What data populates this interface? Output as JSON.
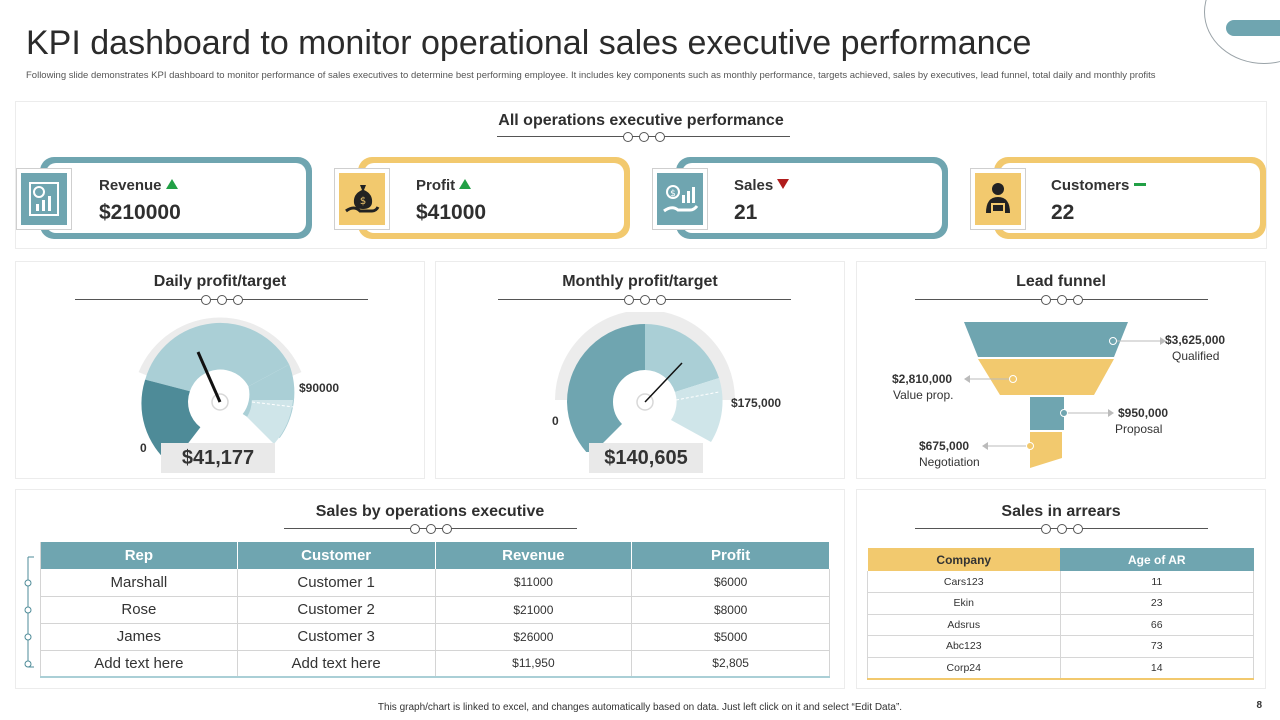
{
  "header": {
    "title": "KPI dashboard to monitor operational sales executive performance",
    "subtitle": "Following slide demonstrates KPI dashboard to monitor performance of sales executives to determine best performing employee. It includes key components such as monthly performance, targets achieved, sales by executives, lead funnel, total daily and monthly profits"
  },
  "overview": {
    "title": "All operations executive performance",
    "kpis": [
      {
        "label": "Revenue",
        "value": "$210000",
        "trend": "up",
        "icon": "revenue-chart-icon"
      },
      {
        "label": "Profit",
        "value": "$41000",
        "trend": "up",
        "icon": "money-bag-hand-icon"
      },
      {
        "label": "Sales",
        "value": "21",
        "trend": "down",
        "icon": "sales-hand-icon"
      },
      {
        "label": "Customers",
        "value": "22",
        "trend": "flat",
        "icon": "customer-person-icon"
      }
    ]
  },
  "daily": {
    "title": "Daily profit/target",
    "min_label": "0",
    "max_label": "$90000",
    "value_label": "$41,177",
    "value": 41177,
    "max": 90000
  },
  "monthly": {
    "title": "Monthly profit/target",
    "min_label": "0",
    "max_label": "$175,000",
    "value_label": "$140,605",
    "value": 140605,
    "max": 175000
  },
  "funnel": {
    "title": "Lead funnel",
    "stages": [
      {
        "value": "$3,625,000",
        "label": "Qualified"
      },
      {
        "value": "$2,810,000",
        "label": "Value prop."
      },
      {
        "value": "$950,000",
        "label": "Proposal"
      },
      {
        "value": "$675,000",
        "label": "Negotiation"
      }
    ]
  },
  "sales_exec": {
    "title": "Sales by operations executive",
    "headers": [
      "Rep",
      "Customer",
      "Revenue",
      "Profit"
    ],
    "rows": [
      [
        "Marshall",
        "Customer 1",
        "$11000",
        "$6000"
      ],
      [
        "Rose",
        "Customer 2",
        "$21000",
        "$8000"
      ],
      [
        "James",
        "Customer 3",
        "$26000",
        "$5000"
      ],
      [
        "Add text here",
        "Add text here",
        "$11,950",
        "$2,805"
      ]
    ]
  },
  "arrears": {
    "title": "Sales in arrears",
    "headers": [
      "Company",
      "Age of AR"
    ],
    "rows": [
      [
        "Cars123",
        "11"
      ],
      [
        "Ekin",
        "23"
      ],
      [
        "Adsrus",
        "66"
      ],
      [
        "Abc123",
        "73"
      ],
      [
        "Corp24",
        "14"
      ]
    ]
  },
  "footer": {
    "note": "This graph/chart is linked to excel, and changes automatically based on data. Just left click on it and select “Edit Data”.",
    "page": "8"
  },
  "colors": {
    "teal": "#6fa5b0",
    "teal_dark": "#4e8b98",
    "gold": "#f2c96e",
    "gold_light": "#f5d58c"
  }
}
